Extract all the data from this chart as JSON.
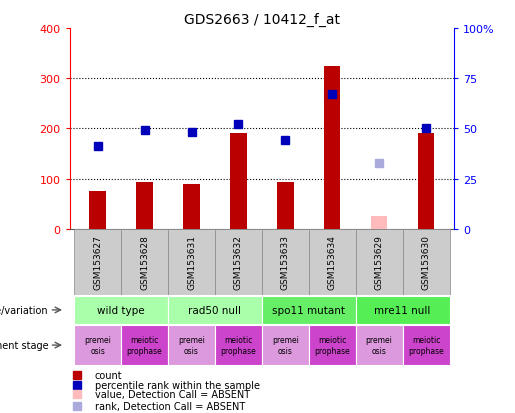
{
  "title": "GDS2663 / 10412_f_at",
  "samples": [
    "GSM153627",
    "GSM153628",
    "GSM153631",
    "GSM153632",
    "GSM153633",
    "GSM153634",
    "GSM153629",
    "GSM153630"
  ],
  "counts": [
    75,
    93,
    90,
    190,
    93,
    325,
    25,
    190
  ],
  "count_absent": [
    false,
    false,
    false,
    false,
    false,
    false,
    true,
    false
  ],
  "ranks": [
    41,
    49,
    48,
    52,
    44,
    67,
    33,
    50
  ],
  "rank_absent": [
    false,
    false,
    false,
    false,
    false,
    false,
    true,
    false
  ],
  "bar_color_present": "#bb0000",
  "bar_color_absent": "#ffbbbb",
  "dot_color_present": "#0000bb",
  "dot_color_absent": "#aaaadd",
  "ylim_left": [
    0,
    400
  ],
  "ylim_right": [
    0,
    100
  ],
  "yticks_left": [
    0,
    100,
    200,
    300,
    400
  ],
  "ytick_labels_left": [
    "0",
    "100",
    "200",
    "300",
    "400"
  ],
  "yticks_right": [
    0,
    25,
    50,
    75,
    100
  ],
  "ytick_labels_right": [
    "0",
    "25",
    "50",
    "75",
    "100%"
  ],
  "genotype_groups": [
    {
      "label": "wild type",
      "span": [
        0,
        2
      ],
      "color": "#aaffaa"
    },
    {
      "label": "rad50 null",
      "span": [
        2,
        4
      ],
      "color": "#aaffaa"
    },
    {
      "label": "spo11 mutant",
      "span": [
        4,
        6
      ],
      "color": "#66ee66"
    },
    {
      "label": "mre11 null",
      "span": [
        6,
        8
      ],
      "color": "#55ee55"
    }
  ],
  "dev_stage_groups": [
    {
      "label": "premei\nosis",
      "span": [
        0,
        1
      ],
      "color": "#dd99dd"
    },
    {
      "label": "meiotic\nprophase",
      "span": [
        1,
        2
      ],
      "color": "#cc44cc"
    },
    {
      "label": "premei\nosis",
      "span": [
        2,
        3
      ],
      "color": "#dd99dd"
    },
    {
      "label": "meiotic\nprophase",
      "span": [
        3,
        4
      ],
      "color": "#cc44cc"
    },
    {
      "label": "premei\nosis",
      "span": [
        4,
        5
      ],
      "color": "#dd99dd"
    },
    {
      "label": "meiotic\nprophase",
      "span": [
        5,
        6
      ],
      "color": "#cc44cc"
    },
    {
      "label": "premei\nosis",
      "span": [
        6,
        7
      ],
      "color": "#dd99dd"
    },
    {
      "label": "meiotic\nprophase",
      "span": [
        7,
        8
      ],
      "color": "#cc44cc"
    }
  ],
  "legend_items": [
    {
      "label": "count",
      "color": "#bb0000"
    },
    {
      "label": "percentile rank within the sample",
      "color": "#0000bb"
    },
    {
      "label": "value, Detection Call = ABSENT",
      "color": "#ffbbbb"
    },
    {
      "label": "rank, Detection Call = ABSENT",
      "color": "#aaaadd"
    }
  ],
  "background_color": "#ffffff",
  "bar_width": 0.35,
  "sample_box_color": "#cccccc",
  "sample_box_edge": "#888888"
}
